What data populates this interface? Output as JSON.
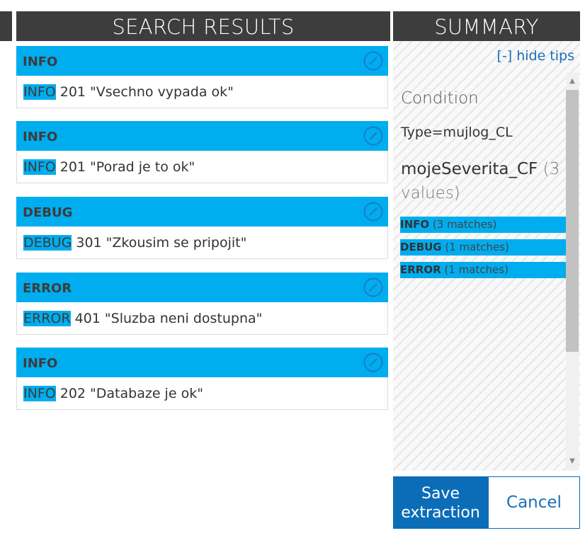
{
  "headers": {
    "results": "SEARCH RESULTS",
    "summary": "SUMMARY"
  },
  "results": [
    {
      "severity": "INFO",
      "highlight": "INFO",
      "message": " 201 \"Vsechno vypada ok\""
    },
    {
      "severity": "INFO",
      "highlight": "INFO",
      "message": " 201 \"Porad je to ok\""
    },
    {
      "severity": "DEBUG",
      "highlight": "DEBUG",
      "message": " 301 \"Zkousim se pripojit\""
    },
    {
      "severity": "ERROR",
      "highlight": "ERROR",
      "message": " 401 \"Sluzba neni dostupna\""
    },
    {
      "severity": "INFO",
      "highlight": "INFO",
      "message": " 202 \"Databaze je ok\""
    }
  ],
  "summary": {
    "hide_tips": "[-] hide tips",
    "condition_label": "Condition",
    "type_text": "Type=mujlog_CL",
    "field_name": "mojeSeverita_CF",
    "field_count": " (3 values)",
    "matches": [
      {
        "value": "INFO",
        "count": " (3 matches)"
      },
      {
        "value": "DEBUG",
        "count": " (1 matches)"
      },
      {
        "value": "ERROR",
        "count": " (1 matches)"
      }
    ]
  },
  "buttons": {
    "save": "Save extraction",
    "cancel": "Cancel"
  },
  "colors": {
    "accent": "#00adee",
    "header_bg": "#3d3d3d",
    "primary_button": "#0b6db8",
    "link": "#1a6fb6"
  },
  "icons": {
    "edit": "edit-pencil-circle-icon",
    "scroll_up": "chevron-up-icon",
    "scroll_down": "chevron-down-icon"
  }
}
